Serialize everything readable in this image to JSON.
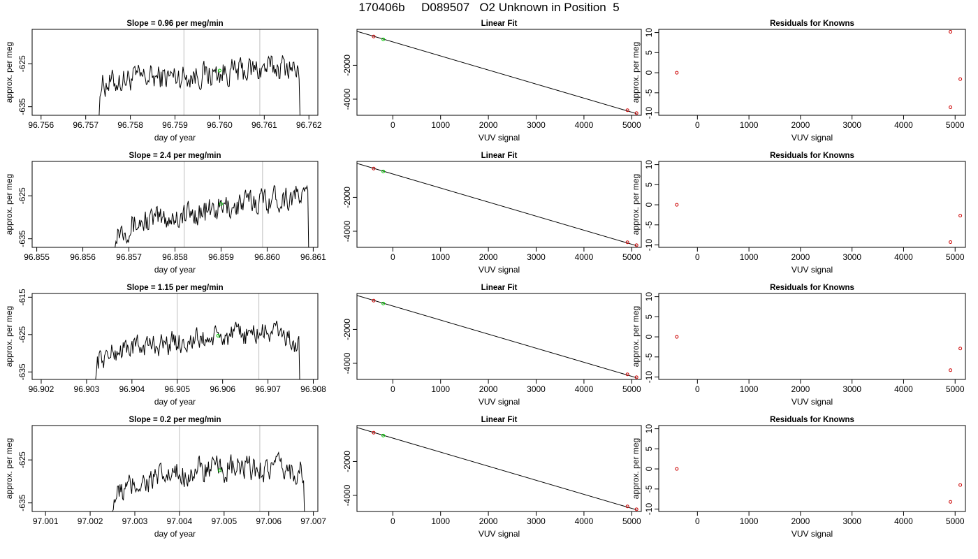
{
  "title": "170406b     D089507   O2 Unknown in Position  5",
  "colors": {
    "trace": "#000000",
    "known": "#cc0000",
    "unknown": "#00cc00",
    "vline": "#bebebe"
  },
  "chart_data": [
    {
      "type": "line",
      "panel": "time",
      "row": 1,
      "title": "Slope =  0.96  per meg/min",
      "xlabel": "day of year",
      "ylabel": "approx. per meg",
      "xlim": [
        96.7558,
        96.7622
      ],
      "ylim": [
        -637,
        -617
      ],
      "xticks": [
        96.756,
        96.757,
        96.758,
        96.759,
        96.76,
        96.761,
        96.762
      ],
      "yticks": [
        -625,
        -635
      ],
      "series_range": [
        96.7573,
        96.7618
      ],
      "start_y": -637,
      "end_y": -637,
      "level": [
        [
          0.0,
          -630
        ],
        [
          0.15,
          -628.5
        ],
        [
          0.55,
          -627.5
        ],
        [
          0.95,
          -625.5
        ],
        [
          1.0,
          -628
        ]
      ],
      "vlines": [
        96.7592,
        96.7609
      ],
      "unknown_point": [
        96.76,
        -626.6
      ]
    },
    {
      "type": "line",
      "panel": "time",
      "row": 2,
      "title": "Slope =  2.4  per meg/min",
      "xlabel": "day of year",
      "ylabel": "approx. per meg",
      "xlim": [
        96.8549,
        96.8611
      ],
      "ylim": [
        -637,
        -617
      ],
      "xticks": [
        96.855,
        96.856,
        96.857,
        96.858,
        96.859,
        96.86,
        96.861
      ],
      "yticks": [
        -625,
        -635
      ],
      "series_range": [
        96.8567,
        96.8609
      ],
      "start_y": -637,
      "end_y": -637,
      "level": [
        [
          0.0,
          -633
        ],
        [
          0.15,
          -631
        ],
        [
          0.5,
          -628.5
        ],
        [
          0.8,
          -625.5
        ],
        [
          1.0,
          -625
        ]
      ],
      "vlines": [
        96.8582,
        96.8599
      ],
      "unknown_point": [
        96.859,
        -626.9
      ]
    },
    {
      "type": "line",
      "panel": "time",
      "row": 3,
      "title": "Slope =  1.15  per meg/min",
      "xlabel": "day of year",
      "ylabel": "approx. per meg",
      "xlim": [
        96.9018,
        96.9081
      ],
      "ylim": [
        -637,
        -614
      ],
      "xticks": [
        96.902,
        96.903,
        96.904,
        96.905,
        96.906,
        96.907,
        96.908
      ],
      "yticks": [
        -615,
        -625,
        -635
      ],
      "series_range": [
        96.9032,
        96.9077
      ],
      "start_y": -637,
      "end_y": -637,
      "level": [
        [
          0.0,
          -632
        ],
        [
          0.15,
          -628.5
        ],
        [
          0.5,
          -626.5
        ],
        [
          0.9,
          -624
        ],
        [
          1.0,
          -629
        ]
      ],
      "vlines": [
        96.905,
        96.9068
      ],
      "unknown_point": [
        96.9059,
        -625.3
      ]
    },
    {
      "type": "line",
      "panel": "time",
      "row": 4,
      "title": "Slope =  0.2  per meg/min",
      "xlabel": "day of year",
      "ylabel": "approx. per meg",
      "xlim": [
        97.0007,
        97.0071
      ],
      "ylim": [
        -637,
        -617
      ],
      "xticks": [
        97.001,
        97.002,
        97.003,
        97.004,
        97.005,
        97.006,
        97.007
      ],
      "yticks": [
        -625,
        -635
      ],
      "series_range": [
        97.0025,
        97.0068
      ],
      "start_y": -637,
      "end_y": -637,
      "level": [
        [
          0.0,
          -634
        ],
        [
          0.12,
          -630.5
        ],
        [
          0.45,
          -627.5
        ],
        [
          0.85,
          -627
        ],
        [
          1.0,
          -628
        ]
      ],
      "vlines": [
        97.004,
        97.0058
      ],
      "unknown_point": [
        97.0049,
        -627.4
      ]
    },
    {
      "type": "scatter",
      "panel": "fit",
      "row": 1,
      "title": "Linear Fit",
      "xlabel": "VUV signal",
      "ylabel": "",
      "xlim": [
        -750,
        5200
      ],
      "ylim": [
        -4950,
        120
      ],
      "xticks": [
        0,
        1000,
        2000,
        3000,
        4000,
        5000
      ],
      "yticks": [
        -2000,
        -4000
      ],
      "fit_line": [
        [
          -750,
          0
        ],
        [
          5100,
          -4850
        ]
      ],
      "knowns": [
        [
          -400,
          -300
        ],
        [
          4910,
          -4650
        ],
        [
          5100,
          -4820
        ]
      ],
      "unknown": [
        [
          -200,
          -470
        ]
      ]
    },
    {
      "type": "scatter",
      "panel": "fit",
      "row": 2,
      "title": "Linear Fit",
      "xlabel": "VUV signal",
      "ylabel": "",
      "xlim": [
        -750,
        5200
      ],
      "ylim": [
        -4950,
        120
      ],
      "xticks": [
        0,
        1000,
        2000,
        3000,
        4000,
        5000
      ],
      "yticks": [
        -2000,
        -4000
      ],
      "fit_line": [
        [
          -750,
          0
        ],
        [
          5100,
          -4850
        ]
      ],
      "knowns": [
        [
          -400,
          -300
        ],
        [
          4910,
          -4650
        ],
        [
          5100,
          -4820
        ]
      ],
      "unknown": [
        [
          -200,
          -470
        ]
      ]
    },
    {
      "type": "scatter",
      "panel": "fit",
      "row": 3,
      "title": "Linear Fit",
      "xlabel": "VUV signal",
      "ylabel": "",
      "xlim": [
        -750,
        5200
      ],
      "ylim": [
        -4950,
        120
      ],
      "xticks": [
        0,
        1000,
        2000,
        3000,
        4000,
        5000
      ],
      "yticks": [
        -2000,
        -4000
      ],
      "fit_line": [
        [
          -750,
          0
        ],
        [
          5100,
          -4850
        ]
      ],
      "knowns": [
        [
          -400,
          -300
        ],
        [
          4910,
          -4650
        ],
        [
          5100,
          -4820
        ]
      ],
      "unknown": [
        [
          -200,
          -470
        ]
      ]
    },
    {
      "type": "scatter",
      "panel": "fit",
      "row": 4,
      "title": "Linear Fit",
      "xlabel": "VUV signal",
      "ylabel": "",
      "xlim": [
        -750,
        5200
      ],
      "ylim": [
        -4950,
        120
      ],
      "xticks": [
        0,
        1000,
        2000,
        3000,
        4000,
        5000
      ],
      "yticks": [
        -2000,
        -4000
      ],
      "fit_line": [
        [
          -750,
          0
        ],
        [
          5100,
          -4850
        ]
      ],
      "knowns": [
        [
          -400,
          -300
        ],
        [
          4910,
          -4650
        ],
        [
          5100,
          -4820
        ]
      ],
      "unknown": [
        [
          -200,
          -470
        ]
      ]
    },
    {
      "type": "scatter",
      "panel": "resid",
      "row": 1,
      "title": "Residuals for Knowns",
      "xlabel": "VUV signal",
      "ylabel": "approx. per meg",
      "xlim": [
        -750,
        5200
      ],
      "ylim": [
        -10.6,
        10.8
      ],
      "xticks": [
        0,
        1000,
        2000,
        3000,
        4000,
        5000
      ],
      "yticks": [
        10,
        5,
        0,
        -5,
        -10
      ],
      "points": [
        [
          -400,
          0
        ],
        [
          4910,
          10.2
        ],
        [
          4910,
          -8.6
        ],
        [
          5100,
          -1.6
        ]
      ]
    },
    {
      "type": "scatter",
      "panel": "resid",
      "row": 2,
      "title": "Residuals for Knowns",
      "xlabel": "VUV signal",
      "ylabel": "approx. per meg",
      "xlim": [
        -750,
        5200
      ],
      "ylim": [
        -10.6,
        10.8
      ],
      "xticks": [
        0,
        1000,
        2000,
        3000,
        4000,
        5000
      ],
      "yticks": [
        10,
        5,
        0,
        -5,
        -10
      ],
      "points": [
        [
          -400,
          0
        ],
        [
          4910,
          -9.3
        ],
        [
          5100,
          -2.7
        ]
      ]
    },
    {
      "type": "scatter",
      "panel": "resid",
      "row": 3,
      "title": "Residuals for Knowns",
      "xlabel": "VUV signal",
      "ylabel": "approx. per meg",
      "xlim": [
        -750,
        5200
      ],
      "ylim": [
        -10.6,
        10.8
      ],
      "xticks": [
        0,
        1000,
        2000,
        3000,
        4000,
        5000
      ],
      "yticks": [
        10,
        5,
        0,
        -5,
        -10
      ],
      "points": [
        [
          -400,
          0
        ],
        [
          4910,
          -8.3
        ],
        [
          5100,
          -2.9
        ]
      ]
    },
    {
      "type": "scatter",
      "panel": "resid",
      "row": 4,
      "title": "Residuals for Knowns",
      "xlabel": "VUV signal",
      "ylabel": "approx. per meg",
      "xlim": [
        -750,
        5200
      ],
      "ylim": [
        -10.6,
        10.8
      ],
      "xticks": [
        0,
        1000,
        2000,
        3000,
        4000,
        5000
      ],
      "yticks": [
        10,
        5,
        0,
        -5,
        -10
      ],
      "points": [
        [
          -400,
          0
        ],
        [
          4910,
          -8.2
        ],
        [
          5100,
          -4.0
        ]
      ]
    }
  ]
}
